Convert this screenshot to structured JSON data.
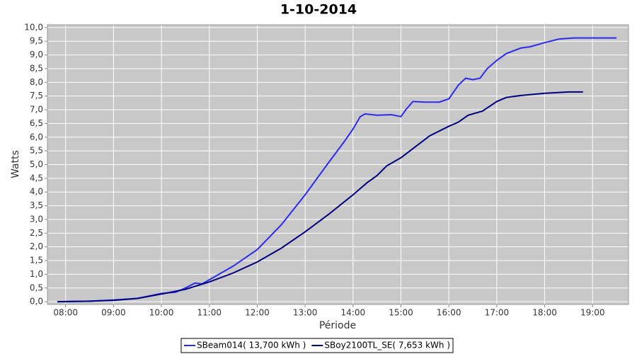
{
  "chart_data": {
    "type": "line",
    "title": "1-10-2014",
    "x_label": "Période",
    "y_label": "Watts",
    "xlim": [
      7.62,
      19.75
    ],
    "xticks": [
      {
        "value": 8,
        "label": "08:00"
      },
      {
        "value": 9,
        "label": "09:00"
      },
      {
        "value": 10,
        "label": "10:00"
      },
      {
        "value": 11,
        "label": "11:00"
      },
      {
        "value": 12,
        "label": "12:00"
      },
      {
        "value": 13,
        "label": "13:00"
      },
      {
        "value": 14,
        "label": "14:00"
      },
      {
        "value": 15,
        "label": "15:00"
      },
      {
        "value": 16,
        "label": "16:00"
      },
      {
        "value": 17,
        "label": "17:00"
      },
      {
        "value": 18,
        "label": "18:00"
      },
      {
        "value": 19,
        "label": "19:00"
      }
    ],
    "ylim": [
      -0.1,
      10.1
    ],
    "yticks": [
      {
        "value": 0,
        "label": "0,0"
      },
      {
        "value": 0.5,
        "label": "0,5"
      },
      {
        "value": 1,
        "label": "1,0"
      },
      {
        "value": 1.5,
        "label": "1,5"
      },
      {
        "value": 2,
        "label": "2,0"
      },
      {
        "value": 2.5,
        "label": "2,5"
      },
      {
        "value": 3,
        "label": "3,0"
      },
      {
        "value": 3.5,
        "label": "3,5"
      },
      {
        "value": 4,
        "label": "4,0"
      },
      {
        "value": 4.5,
        "label": "4,5"
      },
      {
        "value": 5,
        "label": "5,0"
      },
      {
        "value": 5.5,
        "label": "5,5"
      },
      {
        "value": 6,
        "label": "6,0"
      },
      {
        "value": 6.5,
        "label": "6,5"
      },
      {
        "value": 7,
        "label": "7,0"
      },
      {
        "value": 7.5,
        "label": "7,5"
      },
      {
        "value": 8,
        "label": "8,0"
      },
      {
        "value": 8.5,
        "label": "8,5"
      },
      {
        "value": 9,
        "label": "9,0"
      },
      {
        "value": 9.5,
        "label": "9,5"
      },
      {
        "value": 10,
        "label": "10,0"
      }
    ],
    "grid": true,
    "legend": "bottom",
    "series": [
      {
        "name": "SBeam014( 13,700 kWh )",
        "color": "#2b2bf0",
        "x": [
          7.83,
          8.5,
          9,
          9.5,
          10,
          10.3,
          10.5,
          10.7,
          10.85,
          11,
          11.5,
          12,
          12.5,
          13,
          13.5,
          13.8,
          14,
          14.15,
          14.25,
          14.5,
          14.8,
          15,
          15.1,
          15.25,
          15.5,
          15.8,
          16,
          16.2,
          16.35,
          16.5,
          16.65,
          16.8,
          17,
          17.2,
          17.5,
          17.7,
          18,
          18.3,
          18.6,
          19,
          19.5
        ],
        "values": [
          0,
          0.02,
          0.06,
          0.12,
          0.3,
          0.35,
          0.5,
          0.68,
          0.65,
          0.8,
          1.3,
          1.9,
          2.8,
          3.9,
          5.1,
          5.8,
          6.3,
          6.75,
          6.85,
          6.8,
          6.82,
          6.75,
          7.0,
          7.3,
          7.28,
          7.28,
          7.4,
          7.9,
          8.15,
          8.1,
          8.15,
          8.5,
          8.8,
          9.05,
          9.25,
          9.3,
          9.45,
          9.58,
          9.62,
          9.62,
          9.62
        ]
      },
      {
        "name": "SBoy2100TL_SE( 7,653 kWh )",
        "color": "#000080",
        "x": [
          7.83,
          8.5,
          9,
          9.5,
          10,
          10.5,
          11,
          11.5,
          12,
          12.5,
          13,
          13.5,
          14,
          14.3,
          14.5,
          14.7,
          15,
          15.3,
          15.6,
          16,
          16.2,
          16.4,
          16.7,
          17,
          17.2,
          17.5,
          18,
          18.5,
          18.8
        ],
        "values": [
          0,
          0.02,
          0.05,
          0.12,
          0.28,
          0.45,
          0.72,
          1.05,
          1.45,
          1.95,
          2.55,
          3.2,
          3.9,
          4.35,
          4.6,
          4.95,
          5.25,
          5.65,
          6.05,
          6.4,
          6.55,
          6.8,
          6.95,
          7.3,
          7.45,
          7.52,
          7.6,
          7.65,
          7.65
        ]
      }
    ]
  }
}
